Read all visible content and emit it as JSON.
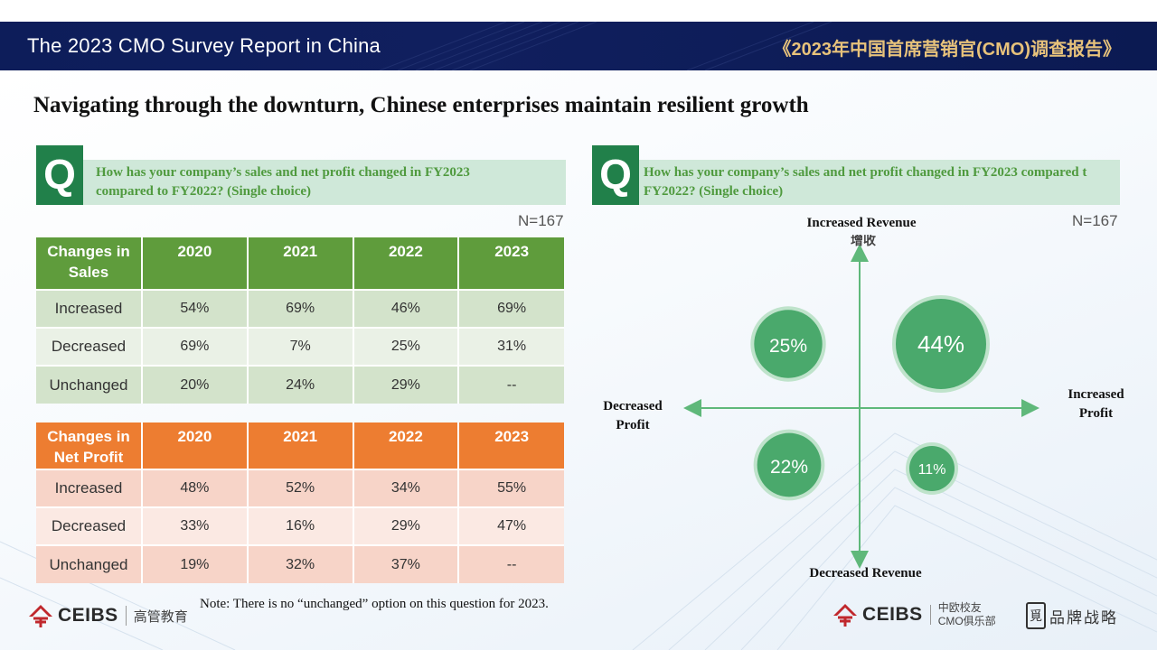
{
  "header": {
    "title_en": "The 2023 CMO Survey Report in China",
    "title_cn": "《2023年中国首席营销官(CMO)调查报告》"
  },
  "main_title": "Navigating through the downturn, Chinese enterprises maintain resilient growth",
  "left_panel": {
    "q_badge": "Q",
    "question_line1": "How has your company’s sales and net profit changed in FY2023",
    "question_line2": "compared to FY2022? (Single choice)",
    "n_label": "N=167",
    "sales_table": {
      "headers": [
        "Changes in Sales",
        "2020",
        "2021",
        "2022",
        "2023"
      ],
      "rows": [
        [
          "Increased",
          "54%",
          "69%",
          "46%",
          "69%"
        ],
        [
          "Decreased",
          "69%",
          "7%",
          "25%",
          "31%"
        ],
        [
          "Unchanged",
          "20%",
          "24%",
          "29%",
          "--"
        ]
      ]
    },
    "profit_table": {
      "headers": [
        "Changes in Net Profit",
        "2020",
        "2021",
        "2022",
        "2023"
      ],
      "rows": [
        [
          "Increased",
          "48%",
          "52%",
          "34%",
          "55%"
        ],
        [
          "Decreased",
          "33%",
          "16%",
          "29%",
          "47%"
        ],
        [
          "Unchanged",
          "19%",
          "32%",
          "37%",
          "--"
        ]
      ]
    },
    "note": "Note: There is no “unchanged” option on this question for 2023."
  },
  "right_panel": {
    "q_badge": "Q",
    "question_line1": "How has your company’s sales and net profit changed in FY2023 compared t",
    "question_line2": "FY2022? (Single choice)",
    "n_label": "N=167",
    "axis_top": "Increased Revenue",
    "axis_top_ghost": "增收",
    "axis_bottom": "Decreased Revenue",
    "axis_left_line1": "Decreased",
    "axis_left_line2": "Profit",
    "axis_right_line1": "Increased",
    "axis_right_line2": "Profit"
  },
  "chart_data": {
    "type": "scatter",
    "title": "",
    "xlabel": "Profit (Decreased ← → Increased)",
    "ylabel": "Revenue (Decreased ↓ ↑ Increased)",
    "quadrants": [
      {
        "name": "increased-revenue-increased-profit",
        "label": "44%",
        "value": 44
      },
      {
        "name": "increased-revenue-decreased-profit",
        "label": "25%",
        "value": 25
      },
      {
        "name": "decreased-revenue-decreased-profit",
        "label": "22%",
        "value": 22
      },
      {
        "name": "decreased-revenue-increased-profit",
        "label": "11%",
        "value": 11
      }
    ]
  },
  "footer": {
    "left_logo_text": "CEIBS",
    "left_logo_sub": "高管教育",
    "right_logo_text": "CEIBS",
    "right_logo_sub1": "中欧校友",
    "right_logo_sub2": "CMO俱乐部",
    "brand_mark": "覓",
    "brand_text": "品牌战略"
  },
  "colors": {
    "banner": "#0d1d5a",
    "green": "#5f9c3c",
    "orange": "#ed7d31",
    "bubble": "#4aa96c",
    "q_badge": "#21804a"
  }
}
